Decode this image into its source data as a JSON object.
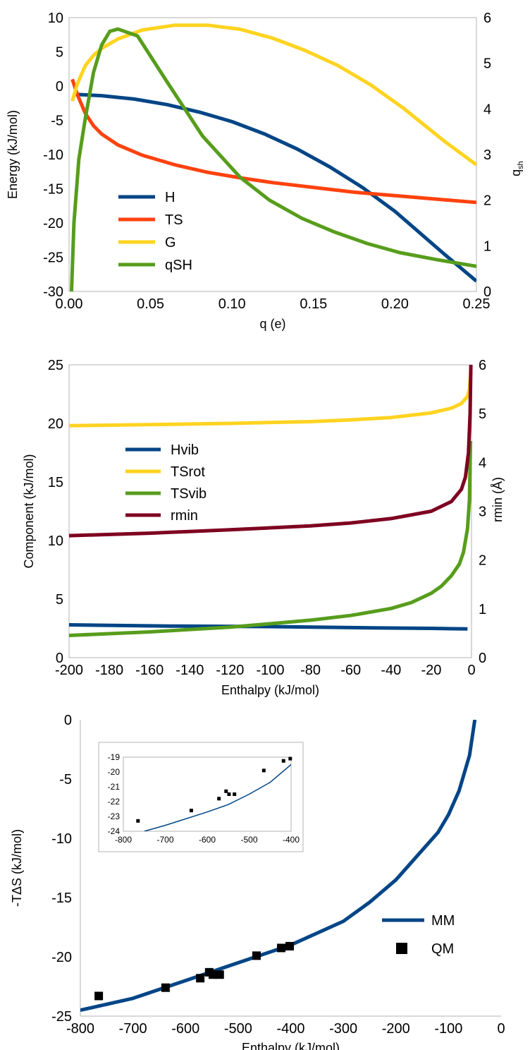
{
  "chart_data": [
    {
      "type": "line",
      "title": "",
      "xlabel": "q (e)",
      "ylabel": "Energy (kJ/mol)",
      "y2label": "q",
      "y2label_sub": "sh",
      "xlim": [
        0,
        0.25
      ],
      "ylim": [
        -30,
        10
      ],
      "y2lim": [
        0,
        6
      ],
      "x_ticks": [
        0,
        0.05,
        0.1,
        0.15,
        0.2,
        0.25
      ],
      "x_tick_labels": [
        "0.00",
        "0.05",
        "0.10",
        "0.15",
        "0.20",
        "0.25"
      ],
      "y_ticks": [
        -30,
        -25,
        -20,
        -15,
        -10,
        -5,
        0,
        5,
        10
      ],
      "y2_ticks": [
        0,
        1,
        2,
        3,
        4,
        5,
        6
      ],
      "grid": false,
      "legend_position": "lower-left",
      "series": [
        {
          "name": "H",
          "color": "#004586",
          "axis": "left",
          "x": [
            0.003,
            0.02,
            0.04,
            0.06,
            0.08,
            0.1,
            0.12,
            0.14,
            0.16,
            0.18,
            0.2,
            0.23,
            0.25
          ],
          "y": [
            -1.2,
            -1.4,
            -1.9,
            -2.7,
            -3.8,
            -5.2,
            -7.0,
            -9.2,
            -11.8,
            -14.8,
            -18.3,
            -24.5,
            -28.5
          ]
        },
        {
          "name": "TS",
          "color": "#ff420e",
          "axis": "left",
          "x": [
            0.002,
            0.005,
            0.01,
            0.015,
            0.02,
            0.03,
            0.045,
            0.065,
            0.085,
            0.105,
            0.125,
            0.15,
            0.175,
            0.2,
            0.225,
            0.25
          ],
          "y": [
            1.0,
            -1.2,
            -4.0,
            -5.8,
            -7.0,
            -8.6,
            -10.1,
            -11.5,
            -12.6,
            -13.4,
            -14.1,
            -14.8,
            -15.5,
            -16.0,
            -16.5,
            -17.0
          ]
        },
        {
          "name": "G",
          "color": "#ffd320",
          "axis": "left",
          "x": [
            0.002,
            0.005,
            0.01,
            0.015,
            0.02,
            0.03,
            0.045,
            0.065,
            0.085,
            0.105,
            0.125,
            0.145,
            0.165,
            0.185,
            0.205,
            0.23,
            0.25
          ],
          "y": [
            -2.2,
            0.3,
            3.0,
            4.5,
            5.5,
            6.9,
            8.2,
            8.9,
            8.9,
            8.3,
            7.0,
            5.2,
            3.0,
            0.2,
            -3.2,
            -8.0,
            -11.5
          ]
        },
        {
          "name": "qSH",
          "color": "#579d1c",
          "axis": "right",
          "x": [
            0.0015,
            0.003,
            0.006,
            0.01,
            0.015,
            0.02,
            0.025,
            0.03,
            0.042,
            0.06,
            0.082,
            0.105,
            0.123,
            0.143,
            0.163,
            0.183,
            0.203,
            0.225,
            0.25
          ],
          "y": [
            0,
            1.5,
            2.9,
            3.8,
            4.8,
            5.4,
            5.7,
            5.75,
            5.6,
            4.6,
            3.4,
            2.5,
            2.0,
            1.6,
            1.3,
            1.05,
            0.85,
            0.7,
            0.55
          ]
        }
      ]
    },
    {
      "type": "line",
      "title": "",
      "xlabel": "Enthalpy (kJ/mol)",
      "ylabel": "Component (kJ/mol)",
      "y2label": "rmin (Å)",
      "xlim": [
        -200,
        0
      ],
      "ylim": [
        0,
        25
      ],
      "y2lim": [
        0,
        6
      ],
      "x_ticks": [
        -200,
        -180,
        -160,
        -140,
        -120,
        -100,
        -80,
        -60,
        -40,
        -20,
        0
      ],
      "y_ticks": [
        0,
        5,
        10,
        15,
        20,
        25
      ],
      "y2_ticks": [
        0,
        1,
        2,
        3,
        4,
        5,
        6
      ],
      "grid": false,
      "legend_position": "center-left",
      "series": [
        {
          "name": "Hvib",
          "color": "#004586",
          "axis": "left",
          "x": [
            -200,
            -150,
            -100,
            -50,
            -20,
            -2
          ],
          "y": [
            2.8,
            2.7,
            2.65,
            2.55,
            2.5,
            2.45
          ]
        },
        {
          "name": "TSrot",
          "color": "#ffd320",
          "axis": "left",
          "x": [
            -200,
            -160,
            -120,
            -80,
            -60,
            -40,
            -20,
            -10,
            -5,
            -2,
            -1,
            -0.3
          ],
          "y": [
            19.8,
            19.9,
            20.0,
            20.15,
            20.3,
            20.5,
            20.9,
            21.3,
            21.7,
            22.3,
            23.0,
            24.5
          ]
        },
        {
          "name": "TSvib",
          "color": "#579d1c",
          "axis": "left",
          "x": [
            -200,
            -160,
            -120,
            -100,
            -80,
            -60,
            -40,
            -30,
            -20,
            -15,
            -10,
            -6,
            -4,
            -2,
            -1,
            -0.5
          ],
          "y": [
            1.9,
            2.2,
            2.6,
            2.9,
            3.2,
            3.6,
            4.2,
            4.7,
            5.5,
            6.1,
            7.0,
            8.0,
            9.0,
            11.0,
            13.5,
            18.5
          ]
        },
        {
          "name": "rmin",
          "color": "#7e0021",
          "axis": "right",
          "x": [
            -200,
            -160,
            -120,
            -80,
            -60,
            -40,
            -20,
            -10,
            -5,
            -3,
            -1.5,
            -0.7,
            -0.3
          ],
          "y": [
            2.5,
            2.55,
            2.62,
            2.7,
            2.76,
            2.85,
            3.0,
            3.2,
            3.45,
            3.7,
            4.2,
            5.0,
            6.0
          ]
        }
      ]
    },
    {
      "type": "scatter",
      "title": "",
      "xlabel": "Enthalpy (kJ/mol)",
      "ylabel": "-TΔS (kJ/mol)",
      "xlim": [
        -800,
        0
      ],
      "ylim": [
        -25,
        0
      ],
      "x_ticks": [
        -800,
        -700,
        -600,
        -500,
        -400,
        -300,
        -200,
        -100,
        0
      ],
      "y_ticks": [
        -25,
        -20,
        -15,
        -10,
        -5,
        0
      ],
      "grid": false,
      "legend_position": "lower-right",
      "series": [
        {
          "name": "MM",
          "kind": "line",
          "color": "#004586",
          "x": [
            -800,
            -700,
            -600,
            -500,
            -400,
            -300,
            -250,
            -200,
            -150,
            -120,
            -100,
            -80,
            -60,
            -50
          ],
          "y": [
            -24.5,
            -23.5,
            -22.0,
            -20.5,
            -19.0,
            -17.0,
            -15.4,
            -13.5,
            -11.0,
            -9.5,
            -8.0,
            -6.0,
            -3.0,
            0.0
          ]
        },
        {
          "name": "QM",
          "kind": "scatter",
          "color": "#000000",
          "x": [
            -765,
            -638,
            -572,
            -555,
            -548,
            -535,
            -465,
            -418,
            -402
          ],
          "y": [
            -23.3,
            -22.6,
            -21.8,
            -21.3,
            -21.5,
            -21.5,
            -19.9,
            -19.25,
            -19.1
          ]
        }
      ],
      "inset": {
        "xlim": [
          -800,
          -400
        ],
        "ylim": [
          -24,
          -19
        ],
        "x_ticks": [
          -800,
          -700,
          -600,
          -500,
          -400
        ],
        "y_ticks": [
          -24,
          -23,
          -22,
          -21,
          -20,
          -19
        ],
        "line": {
          "x": [
            -750,
            -700,
            -600,
            -550,
            -500,
            -450,
            -400
          ],
          "y": [
            -24.0,
            -23.6,
            -22.7,
            -22.2,
            -21.5,
            -20.7,
            -19.5
          ]
        },
        "points": {
          "x": [
            -765,
            -638,
            -572,
            -555,
            -548,
            -535,
            -465,
            -418,
            -402
          ],
          "y": [
            -23.3,
            -22.6,
            -21.8,
            -21.3,
            -21.5,
            -21.5,
            -19.9,
            -19.25,
            -19.1
          ]
        }
      }
    }
  ]
}
